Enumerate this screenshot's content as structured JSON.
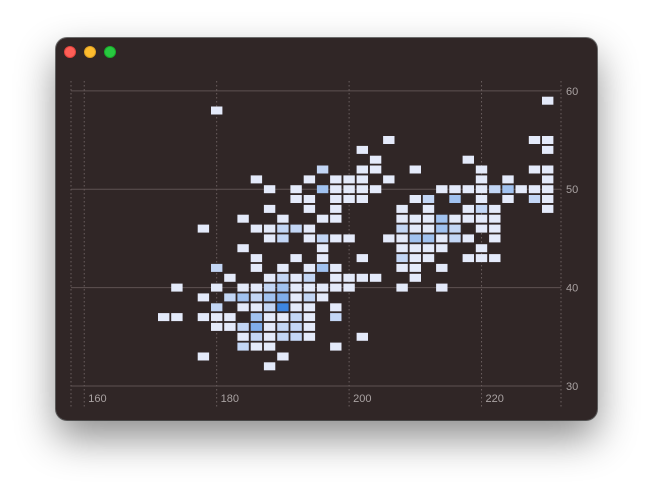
{
  "window": {
    "controls": [
      "close",
      "minimize",
      "zoom"
    ],
    "colors": {
      "background": "#302626",
      "close": "#fe5f57",
      "minimize": "#febc2e",
      "zoom": "#28c840"
    }
  },
  "chart_data": {
    "type": "heatmap",
    "title": "",
    "xlabel": "",
    "ylabel": "",
    "xlim": [
      158,
      232
    ],
    "ylim": [
      30,
      61
    ],
    "x_ticks": [
      "160",
      "180",
      "200",
      "220"
    ],
    "y_ticks": [
      "30",
      "40",
      "50",
      "60"
    ],
    "y_axis_position": "right",
    "grid": true,
    "bin_width": 2,
    "bin_height": 1,
    "color_scale": {
      "low": "#e4eafa",
      "high": "#3d85e0"
    },
    "cells": [
      {
        "x": 180,
        "y": 58,
        "count": 1
      },
      {
        "x": 206,
        "y": 55,
        "count": 1
      },
      {
        "x": 202,
        "y": 54,
        "count": 1
      },
      {
        "x": 204,
        "y": 53,
        "count": 1
      },
      {
        "x": 196,
        "y": 52,
        "count": 2
      },
      {
        "x": 202,
        "y": 52,
        "count": 1
      },
      {
        "x": 204,
        "y": 52,
        "count": 1
      },
      {
        "x": 210,
        "y": 52,
        "count": 1
      },
      {
        "x": 186,
        "y": 51,
        "count": 1
      },
      {
        "x": 194,
        "y": 51,
        "count": 1
      },
      {
        "x": 198,
        "y": 51,
        "count": 1
      },
      {
        "x": 200,
        "y": 51,
        "count": 1
      },
      {
        "x": 202,
        "y": 51,
        "count": 1
      },
      {
        "x": 206,
        "y": 51,
        "count": 1
      },
      {
        "x": 188,
        "y": 50,
        "count": 1
      },
      {
        "x": 192,
        "y": 50,
        "count": 1
      },
      {
        "x": 196,
        "y": 50,
        "count": 3
      },
      {
        "x": 198,
        "y": 50,
        "count": 1
      },
      {
        "x": 200,
        "y": 50,
        "count": 1
      },
      {
        "x": 202,
        "y": 50,
        "count": 1
      },
      {
        "x": 204,
        "y": 50,
        "count": 1
      },
      {
        "x": 192,
        "y": 49,
        "count": 1
      },
      {
        "x": 194,
        "y": 49,
        "count": 1
      },
      {
        "x": 198,
        "y": 49,
        "count": 1
      },
      {
        "x": 200,
        "y": 49,
        "count": 1
      },
      {
        "x": 202,
        "y": 49,
        "count": 1
      },
      {
        "x": 188,
        "y": 48,
        "count": 1
      },
      {
        "x": 194,
        "y": 48,
        "count": 1
      },
      {
        "x": 198,
        "y": 48,
        "count": 1
      },
      {
        "x": 184,
        "y": 47,
        "count": 1
      },
      {
        "x": 190,
        "y": 47,
        "count": 1
      },
      {
        "x": 196,
        "y": 47,
        "count": 1
      },
      {
        "x": 198,
        "y": 47,
        "count": 1
      },
      {
        "x": 178,
        "y": 46,
        "count": 1
      },
      {
        "x": 186,
        "y": 46,
        "count": 1
      },
      {
        "x": 188,
        "y": 46,
        "count": 1
      },
      {
        "x": 190,
        "y": 46,
        "count": 2
      },
      {
        "x": 192,
        "y": 46,
        "count": 2
      },
      {
        "x": 194,
        "y": 46,
        "count": 1
      },
      {
        "x": 188,
        "y": 45,
        "count": 1
      },
      {
        "x": 190,
        "y": 45,
        "count": 2
      },
      {
        "x": 194,
        "y": 45,
        "count": 1
      },
      {
        "x": 196,
        "y": 45,
        "count": 2
      },
      {
        "x": 198,
        "y": 45,
        "count": 1
      },
      {
        "x": 200,
        "y": 45,
        "count": 1
      },
      {
        "x": 184,
        "y": 44,
        "count": 1
      },
      {
        "x": 196,
        "y": 44,
        "count": 1
      },
      {
        "x": 186,
        "y": 43,
        "count": 1
      },
      {
        "x": 192,
        "y": 43,
        "count": 1
      },
      {
        "x": 196,
        "y": 43,
        "count": 1
      },
      {
        "x": 202,
        "y": 43,
        "count": 1
      },
      {
        "x": 180,
        "y": 42,
        "count": 2
      },
      {
        "x": 186,
        "y": 42,
        "count": 1
      },
      {
        "x": 190,
        "y": 42,
        "count": 1
      },
      {
        "x": 194,
        "y": 42,
        "count": 1
      },
      {
        "x": 196,
        "y": 42,
        "count": 3
      },
      {
        "x": 198,
        "y": 42,
        "count": 1
      },
      {
        "x": 182,
        "y": 41,
        "count": 1
      },
      {
        "x": 188,
        "y": 41,
        "count": 1
      },
      {
        "x": 190,
        "y": 41,
        "count": 2
      },
      {
        "x": 192,
        "y": 41,
        "count": 1
      },
      {
        "x": 194,
        "y": 41,
        "count": 2
      },
      {
        "x": 198,
        "y": 41,
        "count": 1
      },
      {
        "x": 200,
        "y": 41,
        "count": 1
      },
      {
        "x": 202,
        "y": 41,
        "count": 1
      },
      {
        "x": 204,
        "y": 41,
        "count": 1
      },
      {
        "x": 174,
        "y": 40,
        "count": 1
      },
      {
        "x": 180,
        "y": 40,
        "count": 1
      },
      {
        "x": 184,
        "y": 40,
        "count": 1
      },
      {
        "x": 186,
        "y": 40,
        "count": 1
      },
      {
        "x": 188,
        "y": 40,
        "count": 2
      },
      {
        "x": 190,
        "y": 40,
        "count": 3
      },
      {
        "x": 192,
        "y": 40,
        "count": 1
      },
      {
        "x": 194,
        "y": 40,
        "count": 1
      },
      {
        "x": 196,
        "y": 40,
        "count": 1
      },
      {
        "x": 198,
        "y": 40,
        "count": 1
      },
      {
        "x": 200,
        "y": 40,
        "count": 1
      },
      {
        "x": 178,
        "y": 39,
        "count": 1
      },
      {
        "x": 182,
        "y": 39,
        "count": 2
      },
      {
        "x": 184,
        "y": 39,
        "count": 3
      },
      {
        "x": 186,
        "y": 39,
        "count": 2
      },
      {
        "x": 188,
        "y": 39,
        "count": 3
      },
      {
        "x": 190,
        "y": 39,
        "count": 4
      },
      {
        "x": 192,
        "y": 39,
        "count": 1
      },
      {
        "x": 194,
        "y": 39,
        "count": 2
      },
      {
        "x": 196,
        "y": 39,
        "count": 1
      },
      {
        "x": 180,
        "y": 38,
        "count": 2
      },
      {
        "x": 184,
        "y": 38,
        "count": 1
      },
      {
        "x": 186,
        "y": 38,
        "count": 1
      },
      {
        "x": 188,
        "y": 38,
        "count": 2
      },
      {
        "x": 190,
        "y": 38,
        "count": 6
      },
      {
        "x": 192,
        "y": 38,
        "count": 1
      },
      {
        "x": 194,
        "y": 38,
        "count": 1
      },
      {
        "x": 198,
        "y": 38,
        "count": 1
      },
      {
        "x": 172,
        "y": 37,
        "count": 1
      },
      {
        "x": 174,
        "y": 37,
        "count": 1
      },
      {
        "x": 178,
        "y": 37,
        "count": 1
      },
      {
        "x": 180,
        "y": 37,
        "count": 1
      },
      {
        "x": 182,
        "y": 37,
        "count": 1
      },
      {
        "x": 186,
        "y": 37,
        "count": 3
      },
      {
        "x": 188,
        "y": 37,
        "count": 1
      },
      {
        "x": 190,
        "y": 37,
        "count": 1
      },
      {
        "x": 192,
        "y": 37,
        "count": 2
      },
      {
        "x": 194,
        "y": 37,
        "count": 1
      },
      {
        "x": 198,
        "y": 37,
        "count": 2
      },
      {
        "x": 180,
        "y": 36,
        "count": 1
      },
      {
        "x": 182,
        "y": 36,
        "count": 1
      },
      {
        "x": 184,
        "y": 36,
        "count": 2
      },
      {
        "x": 186,
        "y": 36,
        "count": 4
      },
      {
        "x": 188,
        "y": 36,
        "count": 1
      },
      {
        "x": 190,
        "y": 36,
        "count": 2
      },
      {
        "x": 192,
        "y": 36,
        "count": 2
      },
      {
        "x": 194,
        "y": 36,
        "count": 1
      },
      {
        "x": 184,
        "y": 35,
        "count": 1
      },
      {
        "x": 186,
        "y": 35,
        "count": 2
      },
      {
        "x": 188,
        "y": 35,
        "count": 1
      },
      {
        "x": 190,
        "y": 35,
        "count": 2
      },
      {
        "x": 192,
        "y": 35,
        "count": 2
      },
      {
        "x": 194,
        "y": 35,
        "count": 1
      },
      {
        "x": 202,
        "y": 35,
        "count": 1
      },
      {
        "x": 184,
        "y": 34,
        "count": 2
      },
      {
        "x": 186,
        "y": 34,
        "count": 1
      },
      {
        "x": 188,
        "y": 34,
        "count": 1
      },
      {
        "x": 198,
        "y": 34,
        "count": 1
      },
      {
        "x": 178,
        "y": 33,
        "count": 1
      },
      {
        "x": 190,
        "y": 33,
        "count": 1
      },
      {
        "x": 188,
        "y": 32,
        "count": 1
      },
      {
        "x": 230,
        "y": 59,
        "count": 1
      },
      {
        "x": 228,
        "y": 55,
        "count": 1
      },
      {
        "x": 230,
        "y": 55,
        "count": 1
      },
      {
        "x": 230,
        "y": 54,
        "count": 1
      },
      {
        "x": 218,
        "y": 53,
        "count": 1
      },
      {
        "x": 220,
        "y": 52,
        "count": 1
      },
      {
        "x": 228,
        "y": 52,
        "count": 1
      },
      {
        "x": 230,
        "y": 52,
        "count": 1
      },
      {
        "x": 220,
        "y": 51,
        "count": 1
      },
      {
        "x": 224,
        "y": 51,
        "count": 1
      },
      {
        "x": 230,
        "y": 51,
        "count": 1
      },
      {
        "x": 214,
        "y": 50,
        "count": 1
      },
      {
        "x": 216,
        "y": 50,
        "count": 1
      },
      {
        "x": 218,
        "y": 50,
        "count": 1
      },
      {
        "x": 220,
        "y": 50,
        "count": 1
      },
      {
        "x": 222,
        "y": 50,
        "count": 2
      },
      {
        "x": 224,
        "y": 50,
        "count": 3
      },
      {
        "x": 226,
        "y": 50,
        "count": 1
      },
      {
        "x": 228,
        "y": 50,
        "count": 1
      },
      {
        "x": 230,
        "y": 50,
        "count": 1
      },
      {
        "x": 210,
        "y": 49,
        "count": 1
      },
      {
        "x": 212,
        "y": 49,
        "count": 2
      },
      {
        "x": 216,
        "y": 49,
        "count": 3
      },
      {
        "x": 220,
        "y": 49,
        "count": 1
      },
      {
        "x": 224,
        "y": 49,
        "count": 1
      },
      {
        "x": 228,
        "y": 49,
        "count": 2
      },
      {
        "x": 230,
        "y": 49,
        "count": 1
      },
      {
        "x": 208,
        "y": 48,
        "count": 1
      },
      {
        "x": 212,
        "y": 48,
        "count": 1
      },
      {
        "x": 218,
        "y": 48,
        "count": 1
      },
      {
        "x": 220,
        "y": 48,
        "count": 2
      },
      {
        "x": 222,
        "y": 48,
        "count": 1
      },
      {
        "x": 230,
        "y": 48,
        "count": 1
      },
      {
        "x": 208,
        "y": 47,
        "count": 1
      },
      {
        "x": 210,
        "y": 47,
        "count": 1
      },
      {
        "x": 212,
        "y": 47,
        "count": 1
      },
      {
        "x": 214,
        "y": 47,
        "count": 3
      },
      {
        "x": 216,
        "y": 47,
        "count": 1
      },
      {
        "x": 218,
        "y": 47,
        "count": 1
      },
      {
        "x": 220,
        "y": 47,
        "count": 1
      },
      {
        "x": 222,
        "y": 47,
        "count": 1
      },
      {
        "x": 208,
        "y": 46,
        "count": 2
      },
      {
        "x": 210,
        "y": 46,
        "count": 1
      },
      {
        "x": 212,
        "y": 46,
        "count": 1
      },
      {
        "x": 214,
        "y": 46,
        "count": 3
      },
      {
        "x": 216,
        "y": 46,
        "count": 2
      },
      {
        "x": 220,
        "y": 46,
        "count": 1
      },
      {
        "x": 222,
        "y": 46,
        "count": 1
      },
      {
        "x": 206,
        "y": 45,
        "count": 1
      },
      {
        "x": 208,
        "y": 45,
        "count": 1
      },
      {
        "x": 210,
        "y": 45,
        "count": 3
      },
      {
        "x": 212,
        "y": 45,
        "count": 3
      },
      {
        "x": 214,
        "y": 45,
        "count": 1
      },
      {
        "x": 216,
        "y": 45,
        "count": 2
      },
      {
        "x": 218,
        "y": 45,
        "count": 1
      },
      {
        "x": 222,
        "y": 45,
        "count": 1
      },
      {
        "x": 208,
        "y": 44,
        "count": 1
      },
      {
        "x": 210,
        "y": 44,
        "count": 1
      },
      {
        "x": 212,
        "y": 44,
        "count": 1
      },
      {
        "x": 214,
        "y": 44,
        "count": 1
      },
      {
        "x": 220,
        "y": 44,
        "count": 1
      },
      {
        "x": 208,
        "y": 43,
        "count": 2
      },
      {
        "x": 210,
        "y": 43,
        "count": 1
      },
      {
        "x": 212,
        "y": 43,
        "count": 1
      },
      {
        "x": 218,
        "y": 43,
        "count": 1
      },
      {
        "x": 220,
        "y": 43,
        "count": 1
      },
      {
        "x": 222,
        "y": 43,
        "count": 1
      },
      {
        "x": 208,
        "y": 42,
        "count": 1
      },
      {
        "x": 210,
        "y": 42,
        "count": 1
      },
      {
        "x": 214,
        "y": 42,
        "count": 1
      },
      {
        "x": 210,
        "y": 41,
        "count": 1
      },
      {
        "x": 208,
        "y": 40,
        "count": 1
      },
      {
        "x": 214,
        "y": 40,
        "count": 1
      }
    ]
  }
}
